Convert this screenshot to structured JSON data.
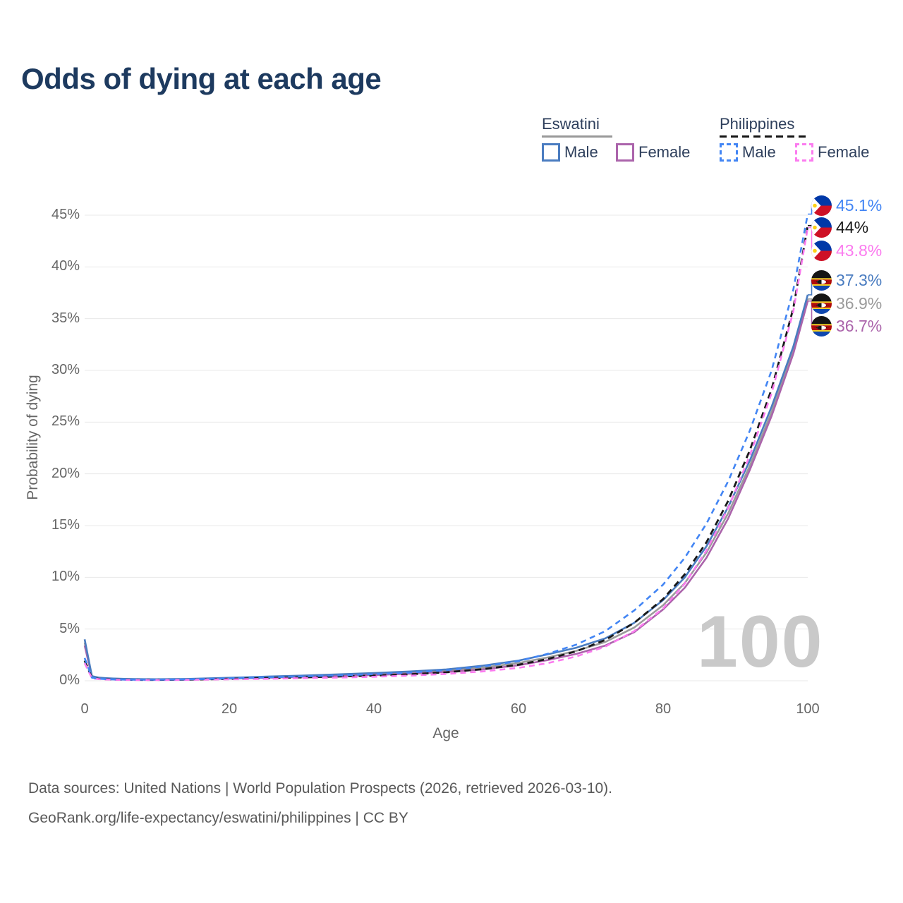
{
  "header": {
    "title": "Odds of dying at each age"
  },
  "legend": {
    "groups": [
      {
        "title": "Eswatini",
        "underline": "solid",
        "items": [
          {
            "label": "Male",
            "series": "sz_male"
          },
          {
            "label": "Female",
            "series": "sz_female"
          }
        ]
      },
      {
        "title": "Philippines",
        "underline": "dashed",
        "items": [
          {
            "label": "Male",
            "series": "ph_male"
          },
          {
            "label": "Female",
            "series": "ph_female"
          }
        ]
      }
    ]
  },
  "chart_data": {
    "type": "line",
    "title": "Odds of dying at each age",
    "xlabel": "Age",
    "ylabel": "Probability of dying",
    "xlim": [
      0,
      100
    ],
    "ylim_pct": [
      0,
      45
    ],
    "grid": "horizontal-only",
    "x_ticks": [
      "0",
      "20",
      "40",
      "60",
      "80",
      "100"
    ],
    "x_tick_values": [
      0,
      20,
      40,
      60,
      80,
      100
    ],
    "y_tick_labels": [
      "0%",
      "5%",
      "10%",
      "15%",
      "20%",
      "25%",
      "30%",
      "35%",
      "40%",
      "45%"
    ],
    "y_ticks_pct": [
      0,
      5,
      10,
      15,
      20,
      25,
      30,
      35,
      40,
      45
    ],
    "ages": [
      0,
      1,
      2,
      3,
      4,
      6,
      8,
      10,
      14,
      18,
      22,
      26,
      30,
      35,
      40,
      45,
      50,
      55,
      60,
      64,
      68,
      72,
      76,
      80,
      83,
      86,
      89,
      92,
      95,
      98,
      100
    ],
    "series": [
      {
        "key": "sz_male",
        "name": "Eswatini Male",
        "color": "#4a7cc0",
        "dash": false,
        "values": [
          4.0,
          0.45,
          0.3,
          0.25,
          0.22,
          0.18,
          0.16,
          0.15,
          0.18,
          0.25,
          0.33,
          0.42,
          0.5,
          0.62,
          0.75,
          0.9,
          1.1,
          1.45,
          1.95,
          2.55,
          3.2,
          4.1,
          5.6,
          7.8,
          10.0,
          13.0,
          16.8,
          21.3,
          26.5,
          32.3,
          37.3
        ]
      },
      {
        "key": "sz_avg",
        "name": "Eswatini Average",
        "color": "#9b9b9b",
        "dash": false,
        "values": [
          3.7,
          0.42,
          0.28,
          0.23,
          0.2,
          0.16,
          0.14,
          0.13,
          0.16,
          0.22,
          0.29,
          0.37,
          0.44,
          0.54,
          0.65,
          0.79,
          0.97,
          1.27,
          1.72,
          2.25,
          2.9,
          3.75,
          5.15,
          7.3,
          9.45,
          12.4,
          16.2,
          20.8,
          26.0,
          31.9,
          36.9
        ]
      },
      {
        "key": "sz_female",
        "name": "Eswatini Female",
        "color": "#ab64ab",
        "dash": false,
        "values": [
          3.4,
          0.4,
          0.26,
          0.21,
          0.18,
          0.14,
          0.12,
          0.11,
          0.13,
          0.18,
          0.24,
          0.31,
          0.38,
          0.46,
          0.56,
          0.69,
          0.85,
          1.1,
          1.5,
          2.0,
          2.6,
          3.4,
          4.7,
          6.9,
          9.0,
          11.9,
          15.7,
          20.4,
          25.6,
          31.6,
          36.7
        ]
      },
      {
        "key": "ph_male",
        "name": "Philippines Male",
        "color": "#4285f4",
        "dash": true,
        "values": [
          2.2,
          0.3,
          0.2,
          0.16,
          0.13,
          0.11,
          0.1,
          0.1,
          0.13,
          0.2,
          0.28,
          0.35,
          0.42,
          0.52,
          0.64,
          0.8,
          1.02,
          1.38,
          1.9,
          2.6,
          3.5,
          4.8,
          6.8,
          9.3,
          11.9,
          15.2,
          19.3,
          24.2,
          30.0,
          37.8,
          45.1
        ]
      },
      {
        "key": "ph_avg",
        "name": "Philippines Average",
        "color": "#191919",
        "dash": true,
        "values": [
          1.95,
          0.28,
          0.18,
          0.14,
          0.12,
          0.1,
          0.09,
          0.09,
          0.11,
          0.16,
          0.22,
          0.27,
          0.33,
          0.41,
          0.5,
          0.63,
          0.82,
          1.12,
          1.55,
          2.1,
          2.85,
          3.95,
          5.6,
          7.9,
          10.3,
          13.4,
          17.4,
          22.3,
          28.2,
          36.0,
          44.0
        ]
      },
      {
        "key": "ph_female",
        "name": "Philippines Female",
        "color": "#fb7bef",
        "dash": true,
        "values": [
          1.7,
          0.25,
          0.16,
          0.12,
          0.1,
          0.08,
          0.07,
          0.07,
          0.09,
          0.12,
          0.16,
          0.2,
          0.25,
          0.31,
          0.39,
          0.5,
          0.66,
          0.9,
          1.25,
          1.7,
          2.35,
          3.3,
          4.8,
          7.0,
          9.4,
          12.6,
          16.7,
          21.8,
          27.8,
          35.7,
          43.8
        ]
      }
    ]
  },
  "end_labels": [
    {
      "text": "45.1%",
      "series": "ph_male",
      "flag": "ph"
    },
    {
      "text": "44%",
      "series": "ph_avg",
      "flag": "ph"
    },
    {
      "text": "43.8%",
      "series": "ph_female",
      "flag": "ph"
    },
    {
      "text": "37.3%",
      "series": "sz_male",
      "flag": "sz"
    },
    {
      "text": "36.9%",
      "series": "sz_avg",
      "flag": "sz"
    },
    {
      "text": "36.7%",
      "series": "sz_female",
      "flag": "sz"
    }
  ],
  "watermark": "100",
  "footer": {
    "line1": "Data sources: United Nations | World Population Prospects (2026, retrieved 2026-03-10).",
    "line2": "GeoRank.org/life-expectancy/eswatini/philippines | CC BY"
  },
  "colors": {
    "grid": "#e8e8e8",
    "axis_text": "#666666",
    "title": "#1d3a5f",
    "watermark": "#c9c9c9"
  }
}
